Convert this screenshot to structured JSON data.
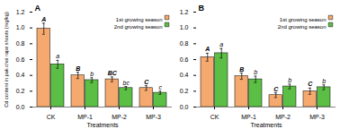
{
  "chart_data": [
    {
      "type": "bar",
      "title": "A",
      "categories": [
        "CK",
        "MP-1",
        "MP-2",
        "MP-3"
      ],
      "series": [
        {
          "name": "1st growing season",
          "color": "#F5A96E",
          "values": [
            0.99,
            0.4,
            0.35,
            0.24
          ],
          "errors": [
            0.07,
            0.04,
            0.03,
            0.03
          ],
          "annotations": [
            "A",
            "B",
            "BC",
            "C"
          ]
        },
        {
          "name": "2nd growing season",
          "color": "#5CBF45",
          "values": [
            0.54,
            0.34,
            0.24,
            0.18
          ],
          "errors": [
            0.05,
            0.03,
            0.02,
            0.02
          ],
          "annotations": [
            "a",
            "b",
            "bc",
            "c"
          ]
        }
      ],
      "xlabel": "Treatments",
      "ylabel": "Cd content in pak choi rape shoots (mg/kg)",
      "ylim": [
        0,
        1.2
      ],
      "yticks": [
        {
          "value": 0,
          "label": "0.0"
        },
        0.2,
        0.4,
        0.6,
        0.8,
        {
          "value": 1,
          "label": "1.0"
        },
        1.2
      ],
      "grid": false,
      "legend": "upper right"
    },
    {
      "type": "bar",
      "title": "B",
      "categories": [
        "CK",
        "MP-1",
        "MP-2",
        "MP-3"
      ],
      "series": [
        {
          "name": "1st growing season",
          "color": "#F5A96E",
          "values": [
            0.63,
            0.39,
            0.15,
            0.2
          ],
          "errors": [
            0.05,
            0.04,
            0.03,
            0.04
          ],
          "annotations": [
            "A",
            "B",
            "C",
            "C"
          ]
        },
        {
          "name": "2nd growing season",
          "color": "#5CBF45",
          "values": [
            0.68,
            0.35,
            0.26,
            0.25
          ],
          "errors": [
            0.06,
            0.04,
            0.03,
            0.03
          ],
          "annotations": [
            "a",
            "b",
            "b",
            "b"
          ]
        }
      ],
      "xlabel": "Treatments",
      "ylim": [
        0,
        1.2
      ],
      "yticks": [
        {
          "value": 0,
          "label": "0.0"
        },
        0.2,
        0.4,
        0.6,
        0.8,
        {
          "value": 1,
          "label": "1.0"
        },
        1.2
      ],
      "grid": false,
      "legend": "upper right"
    }
  ]
}
